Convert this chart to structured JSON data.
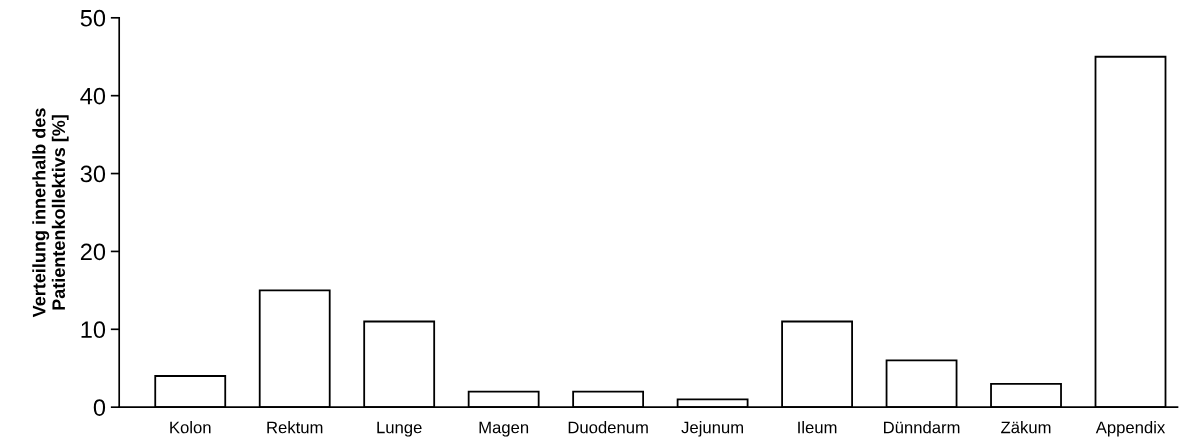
{
  "chart_data": {
    "type": "bar",
    "ylabel": "Verteilung innerhalb des\nPatientenkollektivs [%]",
    "categories": [
      "Kolon",
      "Rektum",
      "Lunge",
      "Magen",
      "Duodenum",
      "Jejunum",
      "Ileum",
      "Dünndarm",
      "Zäkum",
      "Appendix"
    ],
    "values": [
      4,
      15,
      11,
      2,
      2,
      1,
      11,
      6,
      3,
      45
    ],
    "color": "#ffffff",
    "ylim": [
      0,
      50
    ],
    "yticks": [
      0,
      10,
      20,
      30,
      40,
      50
    ],
    "grid": false,
    "legend": false
  }
}
